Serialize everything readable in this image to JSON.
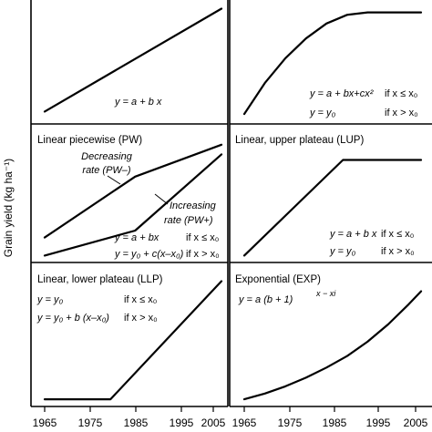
{
  "y_axis_label": "Grain yield (kg ha⁻¹)",
  "chart_data": [
    {
      "type": "line",
      "title": "",
      "equations": [
        {
          "expr": "y = a + b x",
          "cond": ""
        }
      ],
      "x": [
        1965,
        2008
      ],
      "series": [
        {
          "values": [
            0.1,
            0.93
          ]
        }
      ]
    },
    {
      "type": "line",
      "title": "",
      "equations": [
        {
          "expr": "y = a + bx+cx²",
          "cond": "if x ≤ x₀"
        },
        {
          "expr": "y = y₀",
          "cond": "if x > x₀"
        }
      ],
      "x": [
        1965,
        1970,
        1975,
        1980,
        1985,
        1990,
        1995,
        2000,
        2005,
        2008
      ],
      "series": [
        {
          "values": [
            0.08,
            0.33,
            0.53,
            0.69,
            0.81,
            0.88,
            0.9,
            0.9,
            0.9,
            0.9
          ]
        }
      ]
    },
    {
      "type": "line",
      "title": "Linear piecewise (PW)",
      "annotations": [
        "Decreasing",
        "rate (PW–)",
        "Increasing",
        "rate (PW+)"
      ],
      "equations": [
        {
          "expr": "y = a + bx",
          "cond": "if x ≤ x₀"
        },
        {
          "expr": "y = y₀ + c(x–x₀)",
          "cond": "if x > x₀"
        }
      ],
      "x_breaks": [
        1965,
        1987,
        2008
      ],
      "series": [
        {
          "values": [
            0.18,
            0.62,
            0.85
          ]
        },
        {
          "values": [
            0.05,
            0.23,
            0.78
          ]
        }
      ]
    },
    {
      "type": "line",
      "title": "Linear, upper plateau (LUP)",
      "equations": [
        {
          "expr": "y = a + b x",
          "cond": "if x ≤ x₀"
        },
        {
          "expr": "y = y₀",
          "cond": "if x > x₀"
        }
      ],
      "x_breaks": [
        1965,
        1989,
        2008
      ],
      "series": [
        {
          "values": [
            0.05,
            0.74,
            0.74
          ]
        }
      ]
    },
    {
      "type": "line",
      "title": "Linear, lower plateau (LLP)",
      "equations": [
        {
          "expr": "y = y₀",
          "cond": "if x ≤ x₀"
        },
        {
          "expr": "y = y₀ + b (x–x₀)",
          "cond": "if x > x₀"
        }
      ],
      "x_breaks": [
        1965,
        1981,
        2008
      ],
      "series": [
        {
          "values": [
            0.05,
            0.05,
            0.87
          ]
        }
      ]
    },
    {
      "type": "line",
      "title": "Exponential (EXP)",
      "equations": [
        {
          "expr": "y = a (b + 1)",
          "sup": "x − xi",
          "cond": ""
        }
      ],
      "x": [
        1965,
        1970,
        1975,
        1980,
        1985,
        1990,
        1995,
        2000,
        2005,
        2008
      ],
      "series": [
        {
          "values": [
            0.05,
            0.09,
            0.14,
            0.2,
            0.27,
            0.35,
            0.45,
            0.57,
            0.71,
            0.8
          ]
        }
      ]
    }
  ],
  "x_ticks": [
    1965,
    1975,
    1985,
    1995,
    2005
  ]
}
